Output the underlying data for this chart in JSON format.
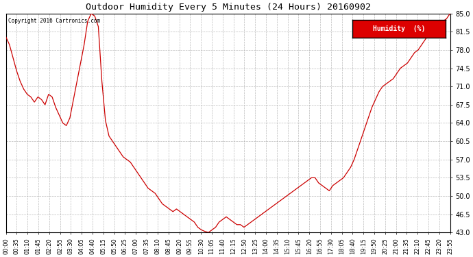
{
  "title": "Outdoor Humidity Every 5 Minutes (24 Hours) 20160902",
  "copyright": "Copyright 2016 Cartronics.com",
  "legend_label": "Humidity  (%)",
  "legend_bg": "#dd0000",
  "legend_text_color": "#ffffff",
  "line_color": "#cc0000",
  "background_color": "#ffffff",
  "grid_color": "#aaaaaa",
  "ylim": [
    43.0,
    85.0
  ],
  "yticks": [
    43.0,
    46.5,
    50.0,
    53.5,
    57.0,
    60.5,
    64.0,
    67.5,
    71.0,
    74.5,
    78.0,
    81.5,
    85.0
  ],
  "x_labels": [
    "00:00",
    "00:35",
    "01:10",
    "01:45",
    "02:20",
    "02:55",
    "03:30",
    "04:05",
    "04:40",
    "05:15",
    "05:50",
    "06:25",
    "07:00",
    "07:35",
    "08:10",
    "08:45",
    "09:20",
    "09:55",
    "10:30",
    "11:05",
    "11:40",
    "12:15",
    "12:50",
    "13:25",
    "14:00",
    "14:35",
    "15:10",
    "15:45",
    "16:20",
    "16:55",
    "17:30",
    "18:05",
    "18:40",
    "19:15",
    "19:50",
    "20:25",
    "21:00",
    "21:35",
    "22:10",
    "22:45",
    "23:20",
    "23:55"
  ],
  "humidity_data": [
    80.5,
    79.0,
    76.5,
    74.0,
    72.0,
    70.5,
    69.5,
    69.0,
    68.0,
    69.0,
    68.5,
    67.5,
    69.5,
    69.0,
    67.0,
    65.5,
    64.0,
    63.5,
    65.0,
    68.5,
    72.0,
    75.5,
    79.0,
    83.5,
    85.0,
    84.5,
    82.5,
    72.0,
    64.5,
    61.5,
    60.5,
    59.5,
    58.5,
    57.5,
    57.0,
    56.5,
    55.5,
    54.5,
    53.5,
    52.5,
    51.5,
    51.0,
    50.5,
    49.5,
    48.5,
    48.0,
    47.5,
    47.0,
    47.5,
    47.0,
    46.5,
    46.0,
    45.5,
    45.0,
    44.0,
    43.5,
    43.2,
    43.0,
    43.5,
    44.0,
    45.0,
    45.5,
    46.0,
    45.5,
    45.0,
    44.5,
    44.5,
    44.0,
    44.5,
    45.0,
    45.5,
    46.0,
    46.5,
    47.0,
    47.5,
    48.0,
    48.5,
    49.0,
    49.5,
    50.0,
    50.5,
    51.0,
    51.5,
    52.0,
    52.5,
    53.0,
    53.5,
    53.5,
    52.5,
    52.0,
    51.5,
    51.0,
    52.0,
    52.5,
    53.0,
    53.5,
    54.5,
    55.5,
    57.0,
    59.0,
    61.0,
    63.0,
    65.0,
    67.0,
    68.5,
    70.0,
    71.0,
    71.5,
    72.0,
    72.5,
    73.5,
    74.5,
    75.0,
    75.5,
    76.5,
    77.5,
    78.0,
    79.0,
    80.0,
    81.0,
    82.0,
    82.5,
    83.0,
    83.5,
    84.0,
    85.0
  ]
}
